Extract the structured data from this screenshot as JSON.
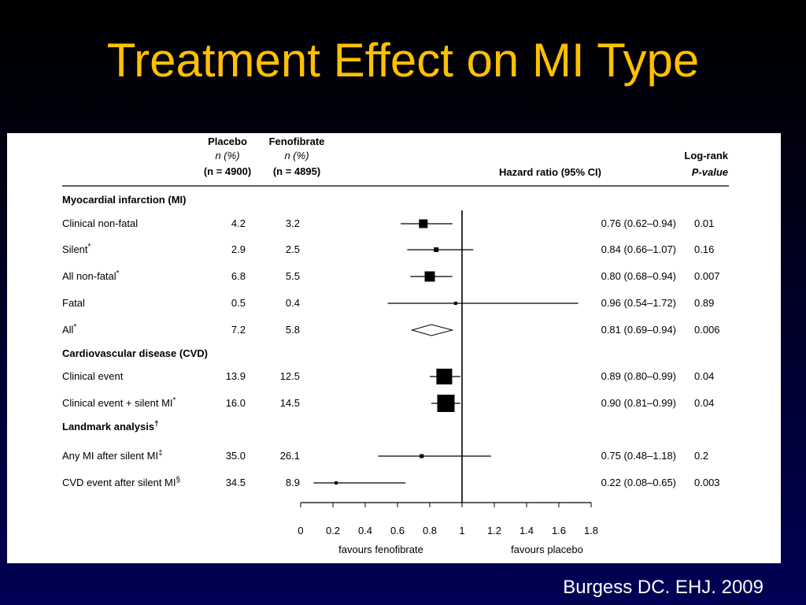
{
  "slide": {
    "title": "Treatment Effect on MI Type",
    "citation": "Burgess DC. EHJ. 2009"
  },
  "table_header": {
    "placebo": [
      "Placebo",
      "n (%)",
      "(n = 4900)"
    ],
    "fenofibrate": [
      "Fenofibrate",
      "n (%)",
      "(n = 4895)"
    ],
    "hazard_ratio": "Hazard ratio (95% CI)",
    "logrank": [
      "Log-rank",
      "P-value"
    ]
  },
  "chart_data": {
    "type": "forest",
    "reference_line": 1,
    "xlim": [
      0,
      1.8
    ],
    "x_ticks": [
      "0",
      "0.2",
      "0.4",
      "0.6",
      "0.8",
      "1",
      "1.2",
      "1.4",
      "1.6",
      "1.8"
    ],
    "favours_left": "favours fenofibrate",
    "favours_right": "favours placebo",
    "sections": [
      {
        "heading": "Myocardial infarction (MI)",
        "rows": [
          {
            "label": "Clinical non-fatal",
            "sup": "",
            "placebo": "4.2",
            "fenofibrate": "3.2",
            "hr": 0.76,
            "lo": 0.62,
            "hi": 0.94,
            "hr_text": "0.76 (0.62–0.94)",
            "p": "0.01",
            "marker": "square",
            "size": 11
          },
          {
            "label": "Silent",
            "sup": "*",
            "placebo": "2.9",
            "fenofibrate": "2.5",
            "hr": 0.84,
            "lo": 0.66,
            "hi": 1.07,
            "hr_text": "0.84 (0.66–1.07)",
            "p": "0.16",
            "marker": "square",
            "size": 6
          },
          {
            "label": "All non-fatal",
            "sup": "*",
            "placebo": "6.8",
            "fenofibrate": "5.5",
            "hr": 0.8,
            "lo": 0.68,
            "hi": 0.94,
            "hr_text": "0.80 (0.68–0.94)",
            "p": "0.007",
            "marker": "square",
            "size": 13
          },
          {
            "label": "Fatal",
            "sup": "",
            "placebo": "0.5",
            "fenofibrate": "0.4",
            "hr": 0.96,
            "lo": 0.54,
            "hi": 1.72,
            "hr_text": "0.96 (0.54–1.72)",
            "p": "0.89",
            "marker": "square",
            "size": 4
          },
          {
            "label": "All",
            "sup": "*",
            "placebo": "7.2",
            "fenofibrate": "5.8",
            "hr": 0.81,
            "lo": 0.69,
            "hi": 0.94,
            "hr_text": "0.81 (0.69–0.94)",
            "p": "0.006",
            "marker": "diamond",
            "size": 0
          }
        ]
      },
      {
        "heading": "Cardiovascular disease (CVD)",
        "rows": [
          {
            "label": "Clinical event",
            "sup": "",
            "placebo": "13.9",
            "fenofibrate": "12.5",
            "hr": 0.89,
            "lo": 0.8,
            "hi": 0.99,
            "hr_text": "0.89 (0.80–0.99)",
            "p": "0.04",
            "marker": "square",
            "size": 20
          },
          {
            "label": "Clinical event + silent MI",
            "sup": "*",
            "placebo": "16.0",
            "fenofibrate": "14.5",
            "hr": 0.9,
            "lo": 0.81,
            "hi": 0.99,
            "hr_text": "0.90 (0.81–0.99)",
            "p": "0.04",
            "marker": "square",
            "size": 22
          }
        ]
      },
      {
        "heading": "Landmark analysis",
        "heading_sup": "†",
        "rows": [
          {
            "label": "Any MI after silent MI",
            "sup": "‡",
            "placebo": "35.0",
            "fenofibrate": "26.1",
            "hr": 0.75,
            "lo": 0.48,
            "hi": 1.18,
            "hr_text": "0.75 (0.48–1.18)",
            "p": "0.2",
            "marker": "square",
            "size": 5
          },
          {
            "label": "CVD event after silent MI",
            "sup": "§",
            "placebo": "34.5",
            "fenofibrate": "8.9",
            "hr": 0.22,
            "lo": 0.08,
            "hi": 0.65,
            "hr_text": "0.22 (0.08–0.65)",
            "p": "0.003",
            "marker": "square",
            "size": 4
          }
        ]
      }
    ]
  }
}
